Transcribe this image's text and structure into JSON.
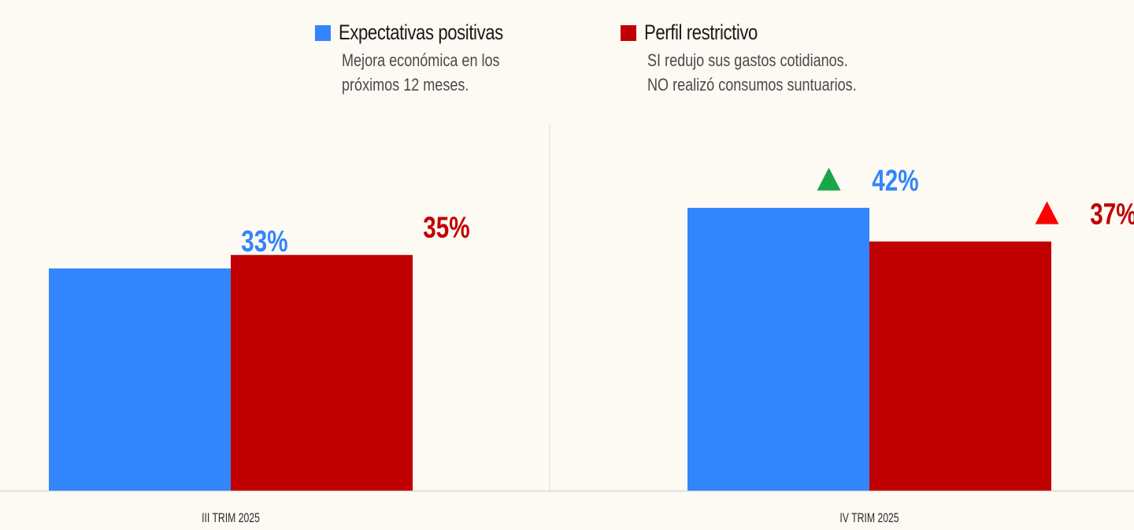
{
  "legend": [
    {
      "name": "Expectativas positivas",
      "color": "#3385fb",
      "desc": [
        "Mejora económica en los",
        "próximos 12 meses."
      ]
    },
    {
      "name": "Perfil restrictivo",
      "color": "#c00000",
      "desc": [
        "SI redujo sus gastos cotidianos.",
        "NO realizó consumos suntuarios."
      ]
    }
  ],
  "chart_data": {
    "type": "bar",
    "title": "",
    "xlabel": "",
    "ylabel": "",
    "ylim": [
      0,
      74
    ],
    "grid": false,
    "legend_position": "top",
    "categories": [
      "III TRIM 2025",
      "IV TRIM 2025"
    ],
    "series": [
      {
        "name": "Expectativas positivas",
        "color": "#3385fb",
        "values": [
          33,
          42
        ],
        "labels": [
          "33%",
          "42%"
        ],
        "trend": [
          null,
          "up"
        ]
      },
      {
        "name": "Perfil restrictivo",
        "color": "#c00000",
        "values": [
          35,
          37
        ],
        "labels": [
          "35%",
          "37%"
        ],
        "trend": [
          null,
          "up"
        ]
      }
    ],
    "trend_colors": {
      "Expectativas positivas": "#1aa54a",
      "Perfil restrictivo": "#ff0000"
    }
  }
}
